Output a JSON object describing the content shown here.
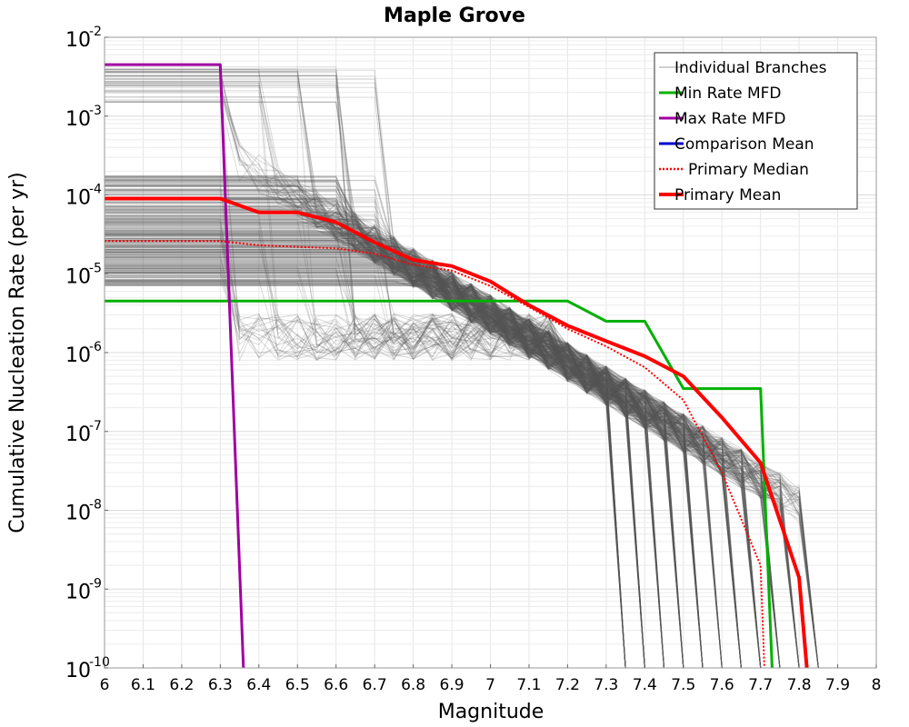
{
  "chart_data": {
    "type": "line",
    "title": "Maple Grove",
    "xlabel": "Magnitude",
    "ylabel": "Cumulative Nucleation Rate (per yr)",
    "xlim": [
      6.0,
      8.0
    ],
    "ylim": [
      1e-10,
      0.01
    ],
    "yscale": "log",
    "grid": true,
    "legend_position": "top-right",
    "x_ticks": [
      6.0,
      6.1,
      6.2,
      6.3,
      6.4,
      6.5,
      6.6,
      6.7,
      6.8,
      6.9,
      7.0,
      7.1,
      7.2,
      7.3,
      7.4,
      7.5,
      7.6,
      7.7,
      7.8,
      7.9,
      8.0
    ],
    "x_tick_labels": [
      "6",
      "6.1",
      "6.2",
      "6.3",
      "6.4",
      "6.5",
      "6.6",
      "6.7",
      "6.8",
      "6.9",
      "7",
      "7.1",
      "7.2",
      "7.3",
      "7.4",
      "7.5",
      "7.6",
      "7.7",
      "7.8",
      "7.9",
      "8"
    ],
    "y_ticks": [
      {
        "value": 0.01,
        "base": "10",
        "exp": "-2"
      },
      {
        "value": 0.001,
        "base": "10",
        "exp": "-3"
      },
      {
        "value": 0.0001,
        "base": "10",
        "exp": "-4"
      },
      {
        "value": 1e-05,
        "base": "10",
        "exp": "-5"
      },
      {
        "value": 1e-06,
        "base": "10",
        "exp": "-6"
      },
      {
        "value": 1e-07,
        "base": "10",
        "exp": "-7"
      },
      {
        "value": 1e-08,
        "base": "10",
        "exp": "-8"
      },
      {
        "value": 1e-09,
        "base": "10",
        "exp": "-9"
      },
      {
        "value": 1e-10,
        "base": "10",
        "exp": "-10"
      }
    ],
    "legend": [
      {
        "label": "Individual Branches",
        "color": "#a0a0a0",
        "style": "thin"
      },
      {
        "label": "Min Rate MFD",
        "color": "#00b000",
        "style": "solid"
      },
      {
        "label": "Max Rate MFD",
        "color": "#a000a0",
        "style": "solid"
      },
      {
        "label": "Comparison Mean",
        "color": "#0000d0",
        "style": "solid"
      },
      {
        "label": "Primary Median",
        "color": "#ff0000",
        "style": "dotted"
      },
      {
        "label": "Primary Mean",
        "color": "#ff0000",
        "style": "thick"
      }
    ],
    "branch_color": "#555555",
    "branch_count": 400,
    "series": [
      {
        "name": "Min Rate MFD",
        "color": "#00b000",
        "x": [
          6.0,
          7.2,
          7.3,
          7.4,
          7.5,
          7.7,
          7.73
        ],
        "y": [
          4.5e-06,
          4.5e-06,
          2.5e-06,
          2.5e-06,
          3.5e-07,
          3.5e-07,
          1e-10
        ]
      },
      {
        "name": "Max Rate MFD",
        "color": "#a000a0",
        "x": [
          6.0,
          6.3,
          6.36
        ],
        "y": [
          0.0045,
          0.0045,
          1e-10
        ]
      },
      {
        "name": "Primary Median",
        "color": "#ff0000",
        "x": [
          6.0,
          6.3,
          6.4,
          6.6,
          6.7,
          6.8,
          6.9,
          7.0,
          7.1,
          7.2,
          7.3,
          7.4,
          7.5,
          7.6,
          7.7,
          7.71
        ],
        "y": [
          2.6e-05,
          2.6e-05,
          2.3e-05,
          2.1e-05,
          1.8e-05,
          1.3e-05,
          1.1e-05,
          7e-06,
          3.8e-06,
          2e-06,
          1.2e-06,
          6.5e-07,
          2.5e-07,
          3e-08,
          2e-09,
          1e-10
        ]
      },
      {
        "name": "Primary Mean",
        "color": "#ff0000",
        "x": [
          6.0,
          6.3,
          6.4,
          6.5,
          6.6,
          6.7,
          6.8,
          6.9,
          7.0,
          7.1,
          7.2,
          7.3,
          7.4,
          7.5,
          7.6,
          7.7,
          7.8,
          7.82
        ],
        "y": [
          9e-05,
          9e-05,
          6e-05,
          6e-05,
          4.5e-05,
          2.5e-05,
          1.5e-05,
          1.25e-05,
          8e-06,
          4e-06,
          2.2e-06,
          1.4e-06,
          9e-07,
          5e-07,
          1.5e-07,
          4e-08,
          1.4e-09,
          1e-10
        ]
      }
    ]
  }
}
